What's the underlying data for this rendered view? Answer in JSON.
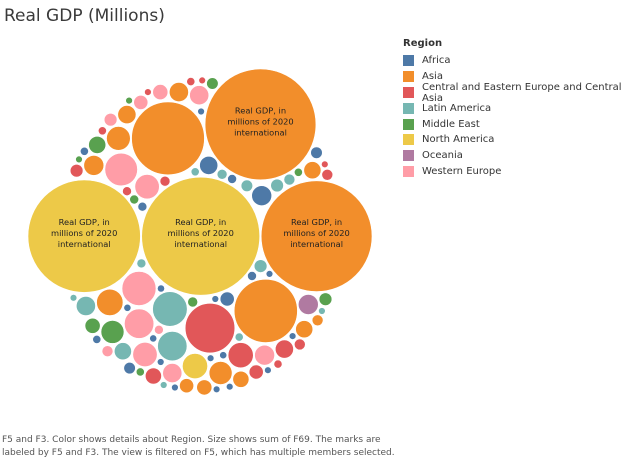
{
  "colors": {
    "Africa": "#4e79a7",
    "Asia": "#f28e2b",
    "Central and Eastern Europe and Central Asia": "#e15759",
    "Latin America": "#76b7b2",
    "Middle East": "#59a14f",
    "North America": "#edc948",
    "Oceania": "#b07aa1",
    "Western Europe": "#ff9da7"
  },
  "title": "Real GDP (Millions)",
  "legend": {
    "title": "Region",
    "items": [
      "Africa",
      "Asia",
      "Central and Eastern Europe and Central Asia",
      "Latin America",
      "Middle East",
      "North America",
      "Oceania",
      "Western Europe"
    ]
  },
  "caption": {
    "line1": "F5 and F3.  Color shows details about Region.  Size shows sum of F69.  The marks are",
    "line2": "labeled by F5 and F3. The view is filtered on F5, which has multiple members selected."
  },
  "chart_data": {
    "type": "packed-bubble",
    "size_measure": "sum of F69",
    "label_text": "Real GDP, in millions of 2020 international",
    "bubbles": [
      {
        "region": "North America",
        "value": 2100
      },
      {
        "region": "North America",
        "value": 1900
      },
      {
        "region": "Asia",
        "value": 1850
      },
      {
        "region": "Asia",
        "value": 1850
      },
      {
        "region": "Asia",
        "value": 800
      },
      {
        "region": "Asia",
        "value": 600
      },
      {
        "region": "Central and Eastern Europe and Central Asia",
        "value": 370
      },
      {
        "region": "Latin America",
        "value": 180
      },
      {
        "region": "Western Europe",
        "value": 175
      },
      {
        "region": "Western Europe",
        "value": 160
      },
      {
        "region": "Western Europe",
        "value": 130
      },
      {
        "region": "Latin America",
        "value": 130
      },
      {
        "region": "Asia",
        "value": 105
      },
      {
        "region": "Central and Eastern Europe and Central Asia",
        "value": 95
      },
      {
        "region": "North America",
        "value": 95
      },
      {
        "region": "Africa",
        "value": 60
      },
      {
        "region": "Middle East",
        "value": 80
      },
      {
        "region": "Western Europe",
        "value": 90
      },
      {
        "region": "Western Europe",
        "value": 90
      },
      {
        "region": "Asia",
        "value": 85
      },
      {
        "region": "Oceania",
        "value": 60
      },
      {
        "region": "Asia",
        "value": 80
      },
      {
        "region": "Western Europe",
        "value": 60
      },
      {
        "region": "Western Europe",
        "value": 55
      },
      {
        "region": "Western Europe",
        "value": 55
      },
      {
        "region": "Asia",
        "value": 60
      },
      {
        "region": "Asia",
        "value": 55
      },
      {
        "region": "Latin America",
        "value": 55
      },
      {
        "region": "Africa",
        "value": 50
      },
      {
        "region": "Central and Eastern Europe and Central Asia",
        "value": 50
      },
      {
        "region": "Asia",
        "value": 50
      },
      {
        "region": "Asia",
        "value": 45
      },
      {
        "region": "Latin America",
        "value": 45
      },
      {
        "region": "Middle East",
        "value": 45
      },
      {
        "region": "Asia",
        "value": 45
      },
      {
        "region": "Central and Eastern Europe and Central Asia",
        "value": 40
      },
      {
        "region": "Asia",
        "value": 40
      },
      {
        "region": "Middle East",
        "value": 35
      },
      {
        "region": "Western Europe",
        "value": 35
      },
      {
        "region": "Asia",
        "value": 35
      },
      {
        "region": "Africa",
        "value": 30
      },
      {
        "region": "Central and Eastern Europe and Central Asia",
        "value": 30
      },
      {
        "region": "Western Europe",
        "value": 30
      },
      {
        "region": "Latin America",
        "value": 25
      },
      {
        "region": "Latin America",
        "value": 25
      },
      {
        "region": "Middle East",
        "value": 25
      },
      {
        "region": "Asia",
        "value": 30
      },
      {
        "region": "Central and Eastern Europe and Central Asia",
        "value": 25
      },
      {
        "region": "Western Europe",
        "value": 25
      },
      {
        "region": "Latin America",
        "value": 20
      },
      {
        "region": "Middle East",
        "value": 20
      },
      {
        "region": "Africa",
        "value": 20
      },
      {
        "region": "Africa",
        "value": 20
      },
      {
        "region": "Latin America",
        "value": 18
      },
      {
        "region": "Central and Eastern Europe and Central Asia",
        "value": 18
      },
      {
        "region": "Central and Eastern Europe and Central Asia",
        "value": 18
      },
      {
        "region": "Western Europe",
        "value": 18
      },
      {
        "region": "Asia",
        "value": 18
      },
      {
        "region": "Latin America",
        "value": 15
      },
      {
        "region": "Middle East",
        "value": 15
      },
      {
        "region": "Central and Eastern Europe and Central Asia",
        "value": 15
      },
      {
        "region": "Africa",
        "value": 12
      },
      {
        "region": "Africa",
        "value": 12
      },
      {
        "region": "Africa",
        "value": 12
      },
      {
        "region": "Latin America",
        "value": 12
      },
      {
        "region": "Middle East",
        "value": 12
      },
      {
        "region": "Central and Eastern Europe and Central Asia",
        "value": 12
      },
      {
        "region": "Western Europe",
        "value": 12
      },
      {
        "region": "Latin America",
        "value": 10
      },
      {
        "region": "Latin America",
        "value": 10
      },
      {
        "region": "Middle East",
        "value": 10
      },
      {
        "region": "Middle East",
        "value": 10
      },
      {
        "region": "Central and Eastern Europe and Central Asia",
        "value": 10
      },
      {
        "region": "Central and Eastern Europe and Central Asia",
        "value": 10
      },
      {
        "region": "Central and Eastern Europe and Central Asia",
        "value": 10
      },
      {
        "region": "Africa",
        "value": 10
      },
      {
        "region": "Africa",
        "value": 10
      },
      {
        "region": "Africa",
        "value": 8
      },
      {
        "region": "Africa",
        "value": 8
      },
      {
        "region": "Africa",
        "value": 8
      },
      {
        "region": "Africa",
        "value": 8
      },
      {
        "region": "Africa",
        "value": 6
      },
      {
        "region": "Africa",
        "value": 6
      },
      {
        "region": "Africa",
        "value": 6
      },
      {
        "region": "Africa",
        "value": 6
      },
      {
        "region": "Africa",
        "value": 5
      },
      {
        "region": "Africa",
        "value": 5
      },
      {
        "region": "Africa",
        "value": 5
      },
      {
        "region": "Africa",
        "value": 5
      },
      {
        "region": "Africa",
        "value": 4
      },
      {
        "region": "Africa",
        "value": 4
      },
      {
        "region": "Latin America",
        "value": 6
      },
      {
        "region": "Latin America",
        "value": 5
      },
      {
        "region": "Latin America",
        "value": 4
      },
      {
        "region": "Central and Eastern Europe and Central Asia",
        "value": 6
      },
      {
        "region": "Central and Eastern Europe and Central Asia",
        "value": 5
      },
      {
        "region": "Central and Eastern Europe and Central Asia",
        "value": 4
      },
      {
        "region": "Middle East",
        "value": 6
      },
      {
        "region": "Middle East",
        "value": 5
      }
    ]
  }
}
